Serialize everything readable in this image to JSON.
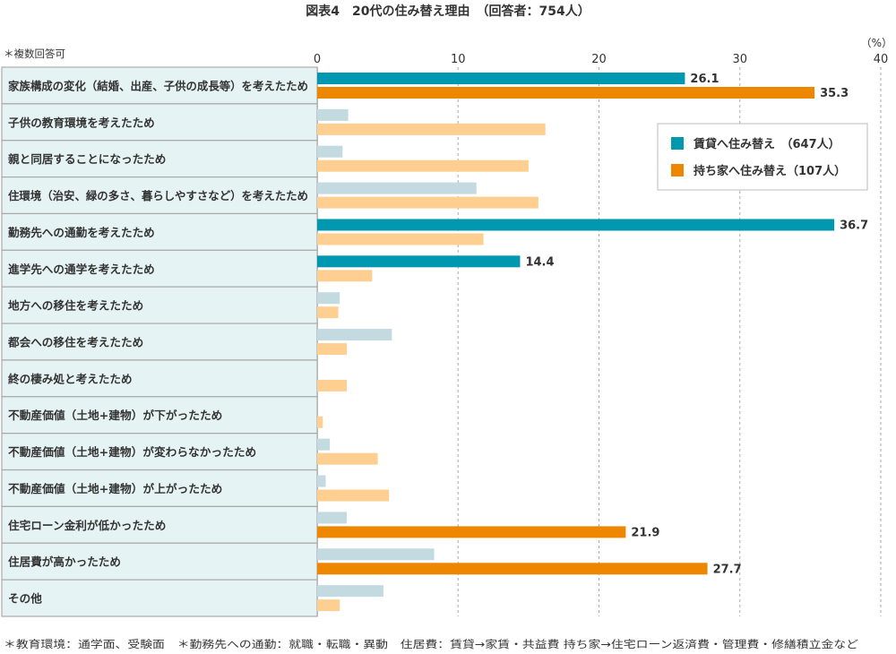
{
  "chart_data": {
    "type": "bar",
    "orientation": "horizontal",
    "title": "図表4　20代の住み替え理由　（回答者：754人）",
    "note_top": "＊複数回答可",
    "unit_label": "（%）",
    "xlim": [
      0,
      40
    ],
    "xticks": [
      0,
      10,
      20,
      30,
      40
    ],
    "grid": true,
    "legend_position": "top-right",
    "categories": [
      "家族構成の変化（結婚、出産、子供の成長等）を考えたため",
      "子供の教育環境を考えたため",
      "親と同居することになったため",
      "住環境（治安、緑の多さ、暮らしやすさなど）を考えたため",
      "勤務先への通勤を考えたため",
      "進学先への通学を考えたため",
      "地方への移住を考えたため",
      "都会への移住を考えたため",
      "終の棲み処と考えたため",
      "不動産価値（土地+建物）が下がったため",
      "不動産価値（土地+建物）が変わらなかったため",
      "不動産価値（土地+建物）が上がったため",
      "住宅ローン金利が低かったため",
      "住居費が高かったため",
      "その他"
    ],
    "series": [
      {
        "name": "賃貸へ住み替え　（647人）",
        "color": "#0098b0",
        "faded_color": "#c2dae0",
        "values": [
          26.1,
          2.2,
          1.8,
          11.3,
          36.7,
          14.4,
          1.6,
          5.3,
          0,
          0,
          0.9,
          0.6,
          2.1,
          8.3,
          4.7
        ],
        "highlighted": [
          true,
          false,
          false,
          false,
          true,
          true,
          false,
          false,
          false,
          false,
          false,
          false,
          false,
          false,
          false
        ]
      },
      {
        "name": "持ち家へ住み替え（107人）",
        "color": "#ee8700",
        "faded_color": "#ffcf91",
        "values": [
          35.3,
          16.2,
          15.0,
          15.7,
          11.8,
          3.9,
          1.5,
          2.1,
          2.1,
          0.4,
          4.3,
          5.1,
          21.9,
          27.7,
          1.6
        ],
        "highlighted": [
          true,
          false,
          false,
          false,
          false,
          false,
          false,
          false,
          false,
          false,
          false,
          false,
          true,
          true,
          false
        ]
      }
    ],
    "footnote": "＊教育環境：通学面、受験面　＊勤務先への通勤：就職・転職・異動　住居費：賃貸→家賃・共益費 持ち家→住宅ローン返済費・管理費・修繕積立金など"
  }
}
